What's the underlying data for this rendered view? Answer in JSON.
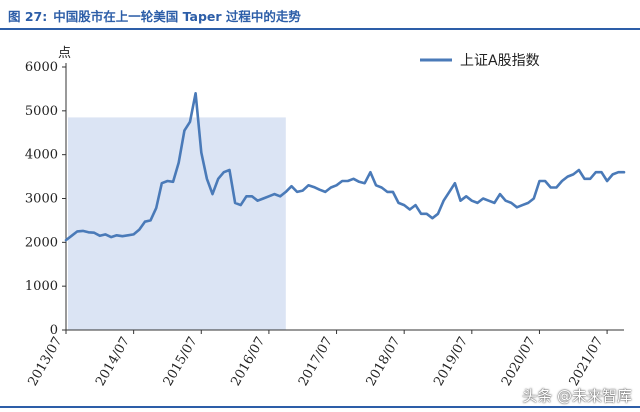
{
  "figure": {
    "label": "图 27:",
    "title": "中国股市在上一轮美国 Taper 过程中的走势"
  },
  "watermark": "头条 @未来智库",
  "colors": {
    "line": "#4a7ab8",
    "shade": "#dbe4f4",
    "header": "#2d5ea8"
  },
  "chart_data": {
    "type": "line",
    "title": "中国股市在上一轮美国 Taper 过程中的走势",
    "ylabel": "点",
    "xlabel": "",
    "ylim": [
      0,
      6000
    ],
    "yticks": [
      0,
      1000,
      2000,
      3000,
      4000,
      5000,
      6000
    ],
    "x_range": [
      "2013-07",
      "2021-10"
    ],
    "xticks": [
      "2013/07",
      "2014/07",
      "2015/07",
      "2016/07",
      "2017/07",
      "2018/07",
      "2019/07",
      "2020/07",
      "2021/07"
    ],
    "legend": {
      "position": "top-right"
    },
    "shaded_range": {
      "from": "2013-07",
      "to": "2016-10",
      "ymax": 4850
    },
    "series": [
      {
        "name": "上证A股指数",
        "points": [
          [
            "2013-07",
            2050
          ],
          [
            "2013-08",
            2150
          ],
          [
            "2013-09",
            2250
          ],
          [
            "2013-10",
            2260
          ],
          [
            "2013-11",
            2230
          ],
          [
            "2013-12",
            2220
          ],
          [
            "2014-01",
            2150
          ],
          [
            "2014-02",
            2180
          ],
          [
            "2014-03",
            2120
          ],
          [
            "2014-04",
            2160
          ],
          [
            "2014-05",
            2140
          ],
          [
            "2014-06",
            2160
          ],
          [
            "2014-07",
            2180
          ],
          [
            "2014-08",
            2290
          ],
          [
            "2014-09",
            2470
          ],
          [
            "2014-10",
            2500
          ],
          [
            "2014-11",
            2780
          ],
          [
            "2014-12",
            3350
          ],
          [
            "2015-01",
            3400
          ],
          [
            "2015-02",
            3380
          ],
          [
            "2015-03",
            3820
          ],
          [
            "2015-04",
            4550
          ],
          [
            "2015-05",
            4750
          ],
          [
            "2015-06",
            5400
          ],
          [
            "2015-07",
            4050
          ],
          [
            "2015-08",
            3450
          ],
          [
            "2015-09",
            3100
          ],
          [
            "2015-10",
            3450
          ],
          [
            "2015-11",
            3600
          ],
          [
            "2015-12",
            3650
          ],
          [
            "2016-01",
            2900
          ],
          [
            "2016-02",
            2850
          ],
          [
            "2016-03",
            3050
          ],
          [
            "2016-04",
            3050
          ],
          [
            "2016-05",
            2950
          ],
          [
            "2016-06",
            3000
          ],
          [
            "2016-07",
            3050
          ],
          [
            "2016-08",
            3100
          ],
          [
            "2016-09",
            3050
          ],
          [
            "2016-10",
            3150
          ],
          [
            "2016-11",
            3280
          ],
          [
            "2016-12",
            3150
          ],
          [
            "2017-01",
            3180
          ],
          [
            "2017-02",
            3300
          ],
          [
            "2017-03",
            3260
          ],
          [
            "2017-04",
            3200
          ],
          [
            "2017-05",
            3150
          ],
          [
            "2017-06",
            3250
          ],
          [
            "2017-07",
            3300
          ],
          [
            "2017-08",
            3400
          ],
          [
            "2017-09",
            3400
          ],
          [
            "2017-10",
            3450
          ],
          [
            "2017-11",
            3380
          ],
          [
            "2017-12",
            3350
          ],
          [
            "2018-01",
            3600
          ],
          [
            "2018-02",
            3300
          ],
          [
            "2018-03",
            3250
          ],
          [
            "2018-04",
            3150
          ],
          [
            "2018-05",
            3150
          ],
          [
            "2018-06",
            2900
          ],
          [
            "2018-07",
            2850
          ],
          [
            "2018-08",
            2750
          ],
          [
            "2018-09",
            2850
          ],
          [
            "2018-10",
            2650
          ],
          [
            "2018-11",
            2650
          ],
          [
            "2018-12",
            2550
          ],
          [
            "2019-01",
            2650
          ],
          [
            "2019-02",
            2950
          ],
          [
            "2019-03",
            3150
          ],
          [
            "2019-04",
            3350
          ],
          [
            "2019-05",
            2950
          ],
          [
            "2019-06",
            3050
          ],
          [
            "2019-07",
            2950
          ],
          [
            "2019-08",
            2900
          ],
          [
            "2019-09",
            3000
          ],
          [
            "2019-10",
            2950
          ],
          [
            "2019-11",
            2900
          ],
          [
            "2019-12",
            3100
          ],
          [
            "2020-01",
            2950
          ],
          [
            "2020-02",
            2900
          ],
          [
            "2020-03",
            2800
          ],
          [
            "2020-04",
            2850
          ],
          [
            "2020-05",
            2900
          ],
          [
            "2020-06",
            3000
          ],
          [
            "2020-07",
            3400
          ],
          [
            "2020-08",
            3400
          ],
          [
            "2020-09",
            3250
          ],
          [
            "2020-10",
            3250
          ],
          [
            "2020-11",
            3400
          ],
          [
            "2020-12",
            3500
          ],
          [
            "2021-01",
            3550
          ],
          [
            "2021-02",
            3650
          ],
          [
            "2021-03",
            3450
          ],
          [
            "2021-04",
            3450
          ],
          [
            "2021-05",
            3600
          ],
          [
            "2021-06",
            3600
          ],
          [
            "2021-07",
            3400
          ],
          [
            "2021-08",
            3550
          ],
          [
            "2021-09",
            3600
          ],
          [
            "2021-10",
            3600
          ]
        ]
      }
    ]
  }
}
